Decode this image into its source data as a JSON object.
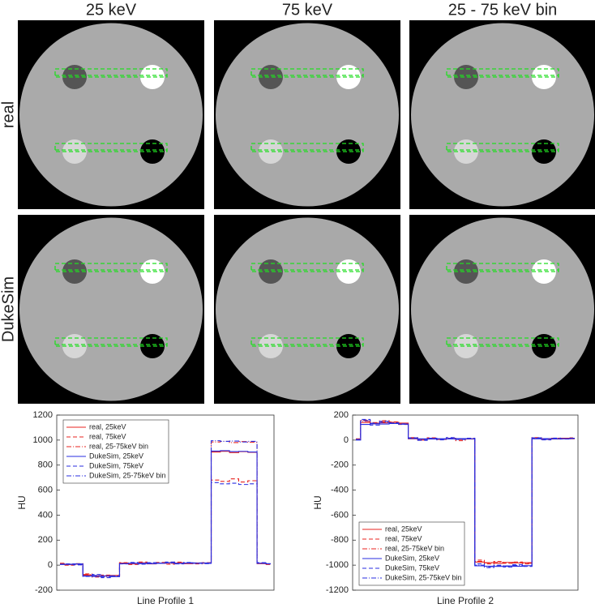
{
  "columns": [
    "25 keV",
    "75 keV",
    "25 - 75 keV bin"
  ],
  "rows": [
    "real",
    "DukeSim"
  ],
  "chart_data": [
    {
      "type": "line",
      "xlabel": "Line Profile 1",
      "ylabel": "HU",
      "ylim": [
        -200,
        1200
      ],
      "yticks": [
        -200,
        0,
        200,
        400,
        600,
        800,
        1000,
        1200
      ],
      "legend": "top-left",
      "series": [
        {
          "name": "real, 25keV",
          "color": "#e8231f",
          "dash": "solid",
          "values": [
            10,
            5,
            8,
            -80,
            -85,
            -88,
            -82,
            15,
            12,
            18,
            10,
            14,
            20,
            16,
            12,
            18,
            15,
            905,
            910,
            900,
            908,
            902,
            12,
            10
          ]
        },
        {
          "name": "real, 75keV",
          "color": "#e8231f",
          "dash": "dashed",
          "values": [
            15,
            0,
            12,
            -70,
            -95,
            -80,
            -90,
            20,
            5,
            25,
            12,
            22,
            8,
            24,
            15,
            10,
            20,
            680,
            670,
            690,
            665,
            675,
            18,
            5
          ]
        },
        {
          "name": "real, 25-75keV bin",
          "color": "#e8231f",
          "dash": "dashdot",
          "values": [
            12,
            4,
            10,
            -75,
            -88,
            -84,
            -86,
            17,
            10,
            20,
            11,
            16,
            15,
            19,
            13,
            15,
            17,
            985,
            990,
            980,
            988,
            982,
            14,
            8
          ]
        },
        {
          "name": "DukeSim, 25keV",
          "color": "#2a2ee0",
          "dash": "solid",
          "values": [
            8,
            6,
            10,
            -88,
            -90,
            -85,
            -92,
            12,
            14,
            15,
            12,
            16,
            18,
            14,
            16,
            15,
            18,
            912,
            915,
            908,
            910,
            905,
            15,
            12
          ]
        },
        {
          "name": "DukeSim, 75keV",
          "color": "#2a2ee0",
          "dash": "dashed",
          "values": [
            5,
            10,
            2,
            -90,
            -75,
            -100,
            -85,
            10,
            22,
            8,
            20,
            15,
            25,
            10,
            22,
            18,
            12,
            660,
            650,
            655,
            645,
            650,
            20,
            10
          ]
        },
        {
          "name": "DukeSim, 25-75keV bin",
          "color": "#2a2ee0",
          "dash": "dashdot",
          "values": [
            7,
            8,
            6,
            -86,
            -82,
            -92,
            -88,
            11,
            18,
            12,
            16,
            15,
            20,
            12,
            19,
            16,
            14,
            995,
            990,
            992,
            985,
            990,
            16,
            11
          ]
        }
      ]
    },
    {
      "type": "line",
      "xlabel": "Line Profile 2",
      "ylabel": "HU",
      "ylim": [
        -1200,
        200
      ],
      "yticks": [
        -1200,
        -1000,
        -800,
        -600,
        -400,
        -200,
        0,
        200
      ],
      "legend": "bottom-left",
      "series": [
        {
          "name": "real, 25keV",
          "color": "#e8231f",
          "dash": "solid",
          "values": [
            5,
            140,
            135,
            138,
            142,
            136,
            10,
            8,
            12,
            6,
            10,
            9,
            8,
            -975,
            -980,
            -985,
            -978,
            -982,
            -980,
            12,
            10,
            8,
            15,
            10
          ]
        },
        {
          "name": "real, 75keV",
          "color": "#e8231f",
          "dash": "dashed",
          "values": [
            10,
            160,
            130,
            155,
            145,
            125,
            20,
            0,
            18,
            5,
            15,
            -5,
            12,
            -960,
            -990,
            -970,
            -985,
            -975,
            -990,
            20,
            5,
            15,
            10,
            18
          ]
        },
        {
          "name": "real, 25-75keV bin",
          "color": "#e8231f",
          "dash": "dashdot",
          "values": [
            8,
            150,
            140,
            145,
            140,
            132,
            15,
            5,
            14,
            8,
            12,
            4,
            10,
            -970,
            -982,
            -978,
            -980,
            -978,
            -985,
            15,
            8,
            12,
            12,
            14
          ]
        },
        {
          "name": "DukeSim, 25keV",
          "color": "#2a2ee0",
          "dash": "solid",
          "values": [
            0,
            125,
            130,
            128,
            132,
            127,
            12,
            10,
            8,
            11,
            9,
            12,
            10,
            -1005,
            -1008,
            -1010,
            -1006,
            -1009,
            -1004,
            10,
            12,
            9,
            11,
            15
          ]
        },
        {
          "name": "DukeSim, 75keV",
          "color": "#2a2ee0",
          "dash": "dashed",
          "values": [
            5,
            165,
            120,
            150,
            135,
            130,
            18,
            -2,
            15,
            2,
            20,
            5,
            15,
            -990,
            -1020,
            -1000,
            -1015,
            -995,
            -1010,
            18,
            2,
            16,
            8,
            12
          ]
        },
        {
          "name": "DukeSim, 25-75keV bin",
          "color": "#2a2ee0",
          "dash": "dashdot",
          "values": [
            3,
            155,
            135,
            140,
            138,
            128,
            14,
            6,
            12,
            6,
            14,
            8,
            12,
            -1000,
            -1012,
            -1005,
            -1010,
            -1002,
            -1008,
            14,
            6,
            12,
            10,
            13
          ]
        }
      ]
    }
  ]
}
